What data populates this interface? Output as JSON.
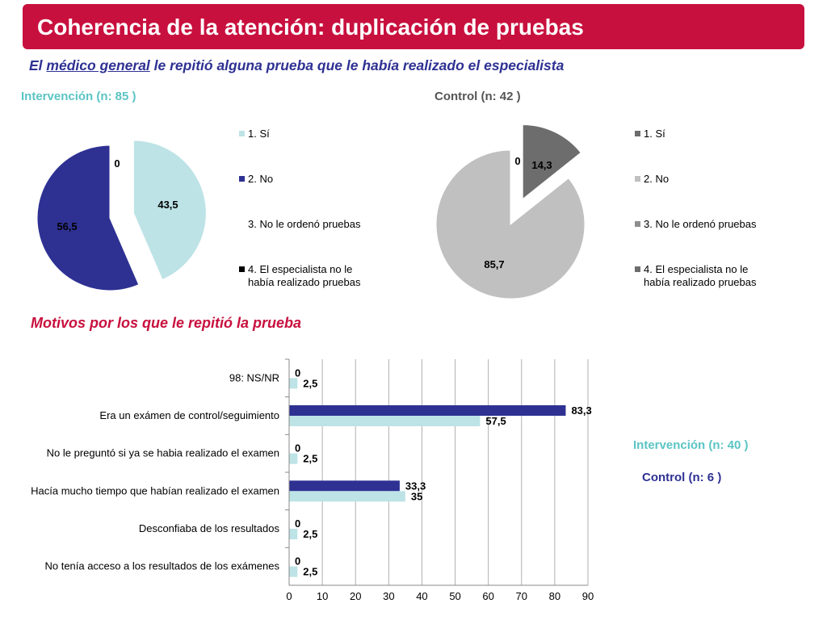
{
  "slide": {
    "title": "Coherencia de la atención: duplicación de pruebas",
    "subtitle_pre": "El ",
    "subtitle_underlined": "médico general",
    "subtitle_post": " le repitió alguna prueba que le había realizado el especialista",
    "section_heading": "Motivos por los que le repitió la prueba"
  },
  "colors": {
    "title_bg": "#c8103e",
    "subtitle": "#2e3192",
    "intervention_light": "#bde3e6",
    "intervention_dark": "#2e3192",
    "control_dark": "#6d6d6d",
    "control_light": "#c0c0c0",
    "control_mid": "#8e8e8e"
  },
  "chart_data": [
    {
      "type": "pie",
      "title": "Intervención (n: 85 )",
      "legend_position": "right",
      "slices": [
        {
          "label": "1. Sí",
          "value": 43.5,
          "display": "43,5",
          "color": "#bde3e6"
        },
        {
          "label": "2. No",
          "value": 56.5,
          "display": "56,5",
          "color": "#2e3192"
        },
        {
          "label": "3. No le ordenó pruebas",
          "value": 0,
          "display": "0",
          "color": "#ffffff"
        },
        {
          "label": "4. El especialista no le había realizado pruebas",
          "value": 0,
          "display": "",
          "color": "#000000"
        }
      ]
    },
    {
      "type": "pie",
      "title": "Control (n: 42 )",
      "legend_position": "right",
      "slices": [
        {
          "label": "1. Sí",
          "value": 14.3,
          "display": "14,3",
          "color": "#6d6d6d"
        },
        {
          "label": "2. No",
          "value": 85.7,
          "display": "85,7",
          "color": "#c0c0c0"
        },
        {
          "label": "3. No le ordenó pruebas",
          "value": 0,
          "display": "0",
          "color": "#8e8e8e"
        },
        {
          "label": "4. El especialista no le había realizado pruebas",
          "value": 0,
          "display": "",
          "color": "#6d6d6d"
        }
      ]
    },
    {
      "type": "bar",
      "orientation": "horizontal",
      "categories": [
        "98: NS/NR",
        "Era un exámen de control/seguimiento",
        "No le preguntó si ya se habia realizado el examen",
        "Hacía mucho tiempo que habían realizado el examen",
        "Desconfiaba de los resultados",
        "No tenía acceso a los resultados de los exámenes"
      ],
      "series": [
        {
          "name": "Control (n: 6 )",
          "values": [
            0,
            83.3,
            0,
            33.3,
            0,
            0
          ],
          "labels": [
            "0",
            "83,3",
            "0",
            "33,3",
            "0",
            "0"
          ],
          "color": "#2e3192"
        },
        {
          "name": "Intervención (n: 40 )",
          "values": [
            2.5,
            57.5,
            2.5,
            35,
            2.5,
            2.5
          ],
          "labels": [
            "2,5",
            "57,5",
            "2,5",
            "35",
            "2,5",
            "2,5"
          ],
          "color": "#bde3e6"
        }
      ],
      "xlim": [
        0,
        90
      ],
      "xticks": [
        "0",
        "10",
        "20",
        "30",
        "40",
        "50",
        "60",
        "70",
        "80",
        "90"
      ],
      "grid": true,
      "legend_position": "right"
    }
  ]
}
